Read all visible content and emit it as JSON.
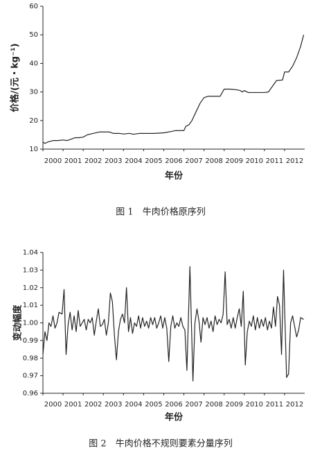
{
  "chart_data": [
    {
      "type": "line",
      "x_label": "年份",
      "y_label": "价格/(元・kg⁻¹)",
      "caption": "图 1　牛肉价格原序列",
      "xlim": [
        2000,
        2013
      ],
      "xticks": [
        2000,
        2001,
        2002,
        2003,
        2004,
        2005,
        2006,
        2007,
        2008,
        2009,
        2010,
        2011,
        2012
      ],
      "ylim": [
        10,
        60
      ],
      "yticks": [
        10,
        20,
        30,
        40,
        50,
        60
      ],
      "series": [
        {
          "color": "#222222",
          "x": [
            2000.0,
            2000.1,
            2000.25,
            2000.5,
            2000.75,
            2001.0,
            2001.2,
            2001.4,
            2001.6,
            2001.8,
            2002.0,
            2002.2,
            2002.5,
            2002.8,
            2003.0,
            2003.3,
            2003.5,
            2003.8,
            2004.0,
            2004.3,
            2004.5,
            2004.8,
            2005.0,
            2005.5,
            2006.0,
            2006.4,
            2006.6,
            2006.85,
            2007.0,
            2007.1,
            2007.25,
            2007.4,
            2007.6,
            2007.8,
            2008.0,
            2008.2,
            2008.5,
            2008.8,
            2009.0,
            2009.3,
            2009.6,
            2009.8,
            2009.9,
            2010.0,
            2010.2,
            2010.6,
            2011.0,
            2011.2,
            2011.4,
            2011.6,
            2011.9,
            2012.0,
            2012.2,
            2012.4,
            2012.6,
            2012.8,
            2012.95
          ],
          "values": [
            12.5,
            12,
            12.5,
            13,
            13,
            13.2,
            13,
            13.5,
            14,
            14,
            14.2,
            15,
            15.5,
            16,
            16,
            16,
            15.5,
            15.5,
            15.3,
            15.5,
            15.2,
            15.5,
            15.5,
            15.5,
            15.7,
            16.2,
            16.5,
            16.5,
            16.5,
            18,
            18.5,
            20,
            23,
            26,
            28,
            28.5,
            28.5,
            28.5,
            31,
            31,
            30.8,
            30.5,
            30,
            30.5,
            29.8,
            29.8,
            29.8,
            30,
            32,
            34,
            34.2,
            37,
            37,
            39,
            42,
            46,
            50
          ]
        }
      ]
    },
    {
      "type": "line",
      "x_label": "年份",
      "y_label": "变动幅度",
      "caption": "图 2　牛肉价格不规则要素分量序列",
      "xlim": [
        2000,
        2013
      ],
      "xticks": [
        2000,
        2001,
        2002,
        2003,
        2004,
        2005,
        2006,
        2007,
        2008,
        2009,
        2010,
        2011,
        2012
      ],
      "ylim": [
        0.96,
        1.04
      ],
      "yticks": [
        0.96,
        0.97,
        0.98,
        0.99,
        {
          "value": 1,
          "label": "1.00"
        },
        1.01,
        1.02,
        1.03,
        1.04
      ],
      "series": [
        {
          "color": "#222222",
          "x": [
            2000.0,
            2000.1,
            2000.2,
            2000.3,
            2000.4,
            2000.5,
            2000.6,
            2000.7,
            2000.8,
            2000.95,
            2001.05,
            2001.15,
            2001.25,
            2001.35,
            2001.45,
            2001.55,
            2001.65,
            2001.75,
            2001.85,
            2001.95,
            2002.05,
            2002.15,
            2002.25,
            2002.35,
            2002.45,
            2002.55,
            2002.65,
            2002.75,
            2002.85,
            2002.95,
            2003.05,
            2003.15,
            2003.25,
            2003.35,
            2003.45,
            2003.55,
            2003.65,
            2003.75,
            2003.85,
            2003.95,
            2004.05,
            2004.15,
            2004.25,
            2004.35,
            2004.45,
            2004.55,
            2004.65,
            2004.75,
            2004.85,
            2004.95,
            2005.05,
            2005.15,
            2005.25,
            2005.35,
            2005.45,
            2005.55,
            2005.65,
            2005.75,
            2005.85,
            2005.95,
            2006.05,
            2006.15,
            2006.25,
            2006.35,
            2006.45,
            2006.55,
            2006.65,
            2006.75,
            2006.85,
            2006.95,
            2007.05,
            2007.15,
            2007.3,
            2007.45,
            2007.55,
            2007.65,
            2007.75,
            2007.85,
            2007.95,
            2008.05,
            2008.15,
            2008.25,
            2008.35,
            2008.45,
            2008.55,
            2008.65,
            2008.75,
            2008.85,
            2008.95,
            2009.05,
            2009.15,
            2009.25,
            2009.35,
            2009.45,
            2009.55,
            2009.65,
            2009.75,
            2009.85,
            2009.95,
            2010.05,
            2010.15,
            2010.25,
            2010.35,
            2010.45,
            2010.55,
            2010.65,
            2010.75,
            2010.85,
            2010.95,
            2011.05,
            2011.15,
            2011.25,
            2011.35,
            2011.45,
            2011.55,
            2011.65,
            2011.75,
            2011.85,
            2011.95,
            2012.1,
            2012.2,
            2012.3,
            2012.4,
            2012.5,
            2012.6,
            2012.7,
            2012.8,
            2012.95
          ],
          "values": [
            0.982,
            0.995,
            0.99,
            1.0,
            0.998,
            1.004,
            0.997,
            1.0,
            1.006,
            1.005,
            1.019,
            0.982,
            0.999,
            1.006,
            0.996,
            1.004,
            0.995,
            1.007,
            0.998,
            1.0,
            1.002,
            0.996,
            1.002,
            1.0,
            1.003,
            0.993,
            1.001,
            1.008,
            0.998,
            0.999,
            1.002,
            0.993,
            1.0,
            1.017,
            1.012,
            0.993,
            0.979,
            0.995,
            1.002,
            1.005,
            1.0,
            1.02,
            0.995,
            1.003,
            0.994,
            1.0,
            0.998,
            1.004,
            0.997,
            1.003,
            0.998,
            1.001,
            0.997,
            1.003,
            0.999,
            1.003,
            0.997,
            1.0,
            1.004,
            0.997,
            1.003,
            0.997,
            0.978,
            0.998,
            1.004,
            0.997,
            1.0,
            0.998,
            1.003,
            0.998,
            0.996,
            0.973,
            1.032,
            0.967,
            1.0,
            1.008,
            1.001,
            0.989,
            1.003,
            0.999,
            1.003,
            0.997,
            1.001,
            0.995,
            1.004,
            0.999,
            1.002,
            1.0,
            1.005,
            1.029,
            0.999,
            1.002,
            0.997,
            1.003,
            0.997,
            1.003,
            1.008,
            0.998,
            1.018,
            0.976,
            0.995,
            1.001,
            0.998,
            1.004,
            0.996,
            1.003,
            0.997,
            1.002,
            0.998,
            1.003,
            0.996,
            1.001,
            0.997,
            1.009,
            0.998,
            1.015,
            1.01,
            0.982,
            1.03,
            0.969,
            0.971,
            1.0,
            1.004,
            0.998,
            0.992,
            0.996,
            1.003,
            1.002
          ]
        }
      ]
    }
  ]
}
